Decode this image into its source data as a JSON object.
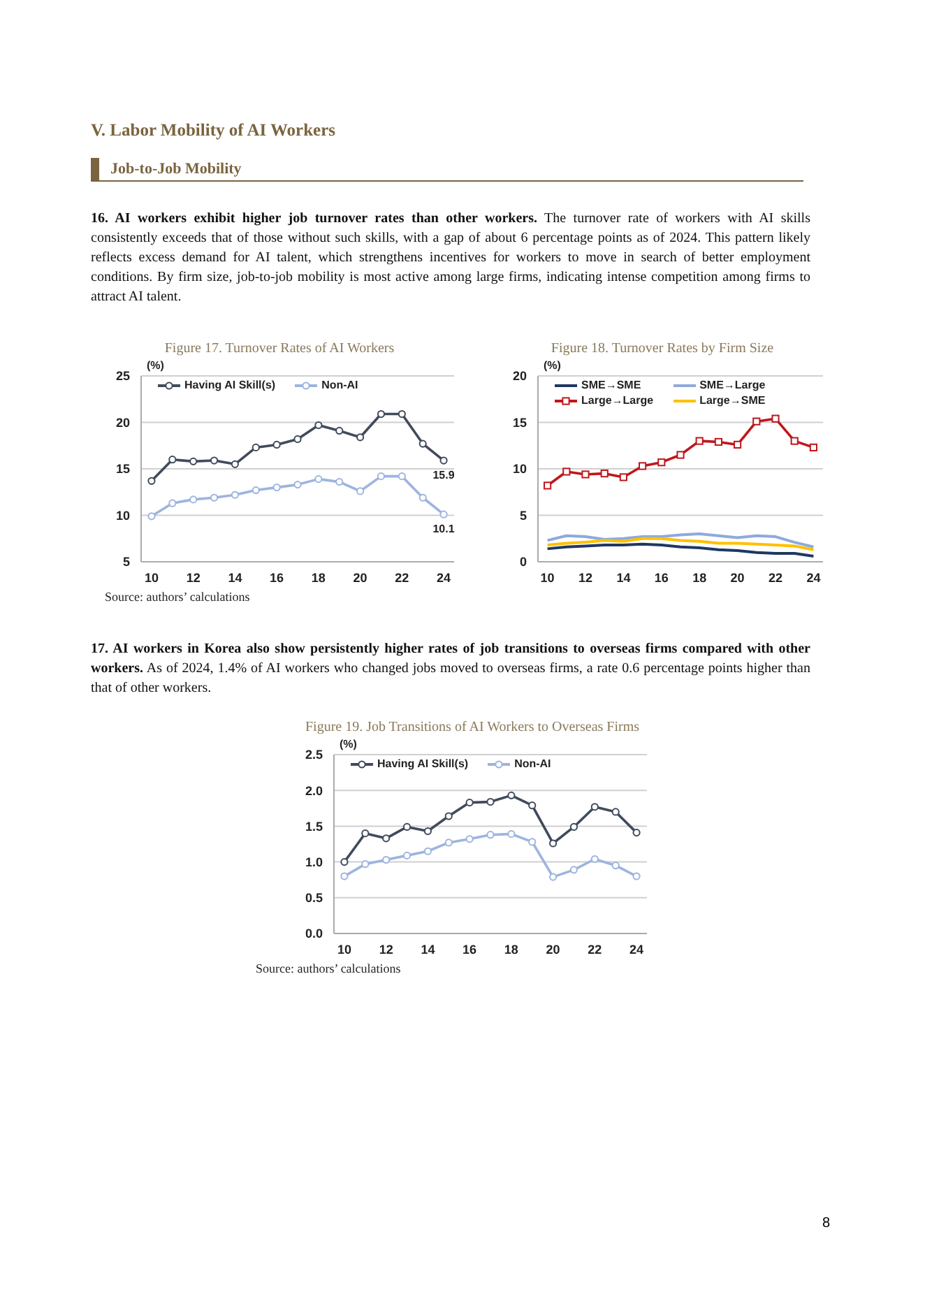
{
  "chart_data": [
    {
      "type": "line",
      "title": "Figure 17. Turnover Rates of AI Workers",
      "ylabel": "(%)",
      "annotations": [
        "V. Labor Mobility of AI Workers",
        "Job-to-Job Mobility",
        "16. AI workers exhibit higher job turnover rates than other workers.",
        "The turnover rate of workers with AI skills consistently exceeds that of those without such skills, with a gap of about 6 percentage points as of 2024. This pattern likely reflects excess demand for AI talent, which strengthens incentives for workers to move in search of better employment conditions. By firm size, job-to-job mobility is most active among large firms, indicating intense competition among firms to attract AI talent.",
        "Source: authors’ calculations"
      ],
      "x": [
        10,
        11,
        12,
        13,
        14,
        15,
        16,
        17,
        18,
        19,
        20,
        21,
        22,
        23,
        24
      ],
      "series": [
        {
          "name": "Having AI Skill(s)",
          "color": "#404b5c",
          "values": [
            13.7,
            16.0,
            15.8,
            15.9,
            15.5,
            17.3,
            17.6,
            18.2,
            19.7,
            19.1,
            18.4,
            20.9,
            20.9,
            17.7,
            15.9
          ],
          "value_labels": [
            null,
            null,
            null,
            null,
            null,
            null,
            null,
            null,
            null,
            null,
            null,
            null,
            null,
            null,
            "15.9"
          ]
        },
        {
          "name": "Non-AI",
          "color": "#9db4e0",
          "values": [
            9.9,
            11.3,
            11.7,
            11.9,
            12.2,
            12.7,
            13.0,
            13.3,
            13.9,
            13.6,
            12.6,
            14.2,
            14.2,
            11.9,
            10.1
          ],
          "value_labels": [
            null,
            null,
            null,
            null,
            null,
            null,
            null,
            null,
            null,
            null,
            null,
            null,
            null,
            null,
            "10.1"
          ]
        }
      ],
      "xlim": [
        9.5,
        24.5
      ],
      "xticks": [
        10,
        12,
        14,
        16,
        18,
        20,
        22,
        24
      ],
      "ylim": [
        5,
        25
      ],
      "yticks": [
        5,
        10,
        15,
        20,
        25
      ],
      "grid": "y",
      "legend": "top left",
      "marker": "circle",
      "line_style": "solid"
    },
    {
      "type": "line",
      "title": "Figure 18. Turnover Rates by Firm Size",
      "ylabel": "(%)",
      "x": [
        10,
        11,
        12,
        13,
        14,
        15,
        16,
        17,
        18,
        19,
        20,
        21,
        22,
        23,
        24
      ],
      "series": [
        {
          "name": "SME→SME",
          "color": "#1f3864",
          "values": [
            1.4,
            1.6,
            1.7,
            1.8,
            1.8,
            1.9,
            1.8,
            1.6,
            1.5,
            1.3,
            1.2,
            1.0,
            0.9,
            0.9,
            0.6
          ]
        },
        {
          "name": "SME→Large",
          "color": "#8eaadb",
          "values": [
            2.3,
            2.8,
            2.7,
            2.4,
            2.5,
            2.7,
            2.7,
            2.9,
            3.0,
            2.8,
            2.6,
            2.8,
            2.7,
            2.1,
            1.6
          ]
        },
        {
          "name": "Large→Large",
          "color": "#c0161c",
          "marker": "square",
          "values": [
            8.2,
            9.7,
            9.4,
            9.5,
            9.1,
            10.3,
            10.7,
            11.5,
            13.0,
            12.9,
            12.6,
            15.1,
            15.4,
            13.0,
            12.3
          ]
        },
        {
          "name": "Large→SME",
          "color": "#ffc000",
          "values": [
            1.8,
            2.0,
            2.1,
            2.3,
            2.2,
            2.5,
            2.5,
            2.3,
            2.2,
            2.0,
            2.0,
            1.9,
            1.8,
            1.7,
            1.3
          ]
        }
      ],
      "xlim": [
        9.5,
        24.5
      ],
      "xticks": [
        10,
        12,
        14,
        16,
        18,
        20,
        22,
        24
      ],
      "ylim": [
        0,
        20
      ],
      "yticks": [
        0,
        5,
        10,
        15,
        20
      ],
      "grid": "y",
      "legend": "top left",
      "line_style": "solid"
    },
    {
      "type": "line",
      "title": "Figure 19. Job Transitions of AI Workers to Overseas Firms",
      "ylabel": "(%)",
      "annotations": [
        "17. AI workers in Korea also show persistently higher rates of job transitions to overseas firms compared with other workers.",
        "As of 2024, 1.4% of AI workers who changed jobs moved to overseas firms, a rate 0.6 percentage points higher than that of other workers.",
        "Source: authors’ calculations",
        "8"
      ],
      "x": [
        10,
        11,
        12,
        13,
        14,
        15,
        16,
        17,
        18,
        19,
        20,
        21,
        22,
        23,
        24
      ],
      "series": [
        {
          "name": "Having AI Skill(s)",
          "color": "#404b5c",
          "values": [
            1.0,
            1.4,
            1.33,
            1.49,
            1.43,
            1.64,
            1.83,
            1.84,
            1.93,
            1.79,
            1.26,
            1.49,
            1.77,
            1.7,
            1.41
          ]
        },
        {
          "name": "Non-AI",
          "color": "#9db4e0",
          "values": [
            0.8,
            0.97,
            1.03,
            1.09,
            1.15,
            1.27,
            1.32,
            1.38,
            1.39,
            1.28,
            0.79,
            0.89,
            1.04,
            0.95,
            0.8
          ]
        }
      ],
      "xlim": [
        9.5,
        24.5
      ],
      "xticks": [
        10,
        12,
        14,
        16,
        18,
        20,
        22,
        24
      ],
      "ylim": [
        0,
        2.5
      ],
      "yticks": [
        {
          "value": 0,
          "label": "0.0"
        },
        {
          "value": 0.5,
          "label": "0.5"
        },
        {
          "value": 1,
          "label": "1.0"
        },
        {
          "value": 1.5,
          "label": "1.5"
        },
        {
          "value": 2,
          "label": "2.0"
        },
        {
          "value": 2.5,
          "label": "2.5"
        }
      ],
      "grid": "y",
      "legend": "top left",
      "marker": "circle",
      "line_style": "solid"
    }
  ]
}
